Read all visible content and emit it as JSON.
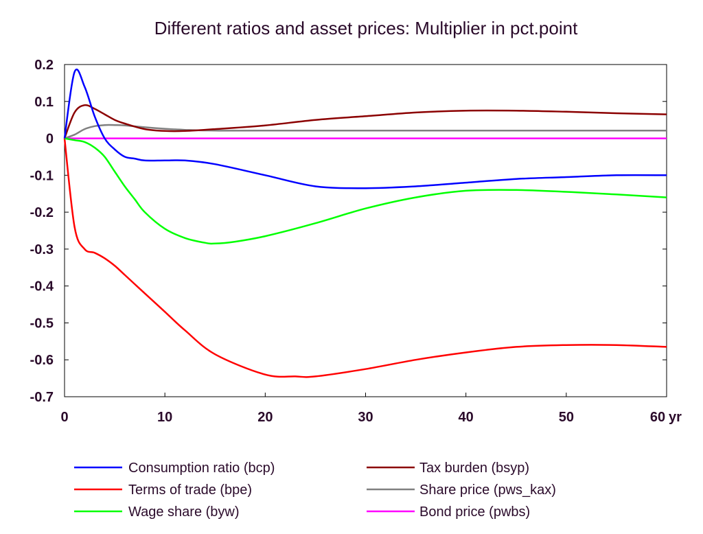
{
  "chart_data": {
    "type": "line",
    "title": "Different ratios and asset prices: Multiplier in pct.point",
    "xlabel": "",
    "ylabel": "",
    "x_unit_label": "yr",
    "xlim": [
      0,
      60
    ],
    "ylim": [
      -0.7,
      0.2
    ],
    "x_ticks": [
      0,
      10,
      20,
      30,
      40,
      50,
      60
    ],
    "x_tick_labels": [
      "0",
      "10",
      "20",
      "30",
      "40",
      "50",
      "60"
    ],
    "y_ticks": [
      0.2,
      0.1,
      0,
      -0.1,
      -0.2,
      -0.3,
      -0.4,
      -0.5,
      -0.6,
      -0.7
    ],
    "y_tick_labels": [
      "0.2",
      "0.1",
      "0",
      "-0.1",
      "-0.2",
      "-0.3",
      "-0.4",
      "-0.5",
      "-0.6",
      "-0.7"
    ],
    "grid": false,
    "legend_placement": "bottom",
    "series": [
      {
        "name": "Consumption ratio (bcp)",
        "color": "#0000ff",
        "x": [
          0,
          1,
          2,
          3,
          4,
          5,
          6,
          7,
          8,
          10,
          12,
          15,
          20,
          25,
          30,
          35,
          40,
          45,
          50,
          55,
          60
        ],
        "y": [
          0,
          0.18,
          0.14,
          0.06,
          0.0,
          -0.03,
          -0.05,
          -0.055,
          -0.06,
          -0.06,
          -0.06,
          -0.07,
          -0.1,
          -0.13,
          -0.135,
          -0.13,
          -0.12,
          -0.11,
          -0.105,
          -0.1,
          -0.1
        ]
      },
      {
        "name": "Terms of trade (bpe)",
        "color": "#ff0000",
        "x": [
          0,
          1,
          2,
          3,
          4,
          5,
          6,
          7,
          8,
          10,
          12,
          15,
          20,
          23,
          25,
          30,
          35,
          40,
          45,
          50,
          55,
          60
        ],
        "y": [
          0,
          -0.24,
          -0.3,
          -0.31,
          -0.325,
          -0.345,
          -0.37,
          -0.395,
          -0.42,
          -0.47,
          -0.52,
          -0.585,
          -0.64,
          -0.645,
          -0.645,
          -0.625,
          -0.6,
          -0.58,
          -0.565,
          -0.56,
          -0.56,
          -0.565
        ]
      },
      {
        "name": "Wage share (byw)",
        "color": "#00ff00",
        "x": [
          0,
          1,
          2,
          3,
          4,
          5,
          6,
          7,
          8,
          10,
          12,
          14,
          15,
          17,
          20,
          25,
          30,
          35,
          40,
          45,
          50,
          55,
          60
        ],
        "y": [
          0,
          -0.005,
          -0.01,
          -0.025,
          -0.05,
          -0.09,
          -0.13,
          -0.165,
          -0.2,
          -0.245,
          -0.27,
          -0.283,
          -0.285,
          -0.28,
          -0.265,
          -0.23,
          -0.19,
          -0.16,
          -0.142,
          -0.14,
          -0.145,
          -0.152,
          -0.16
        ]
      },
      {
        "name": "Tax burden (bsyp)",
        "color": "#8b0000",
        "x": [
          0,
          1,
          2,
          3,
          4,
          5,
          6,
          8,
          10,
          12,
          15,
          20,
          25,
          30,
          35,
          40,
          45,
          50,
          55,
          60
        ],
        "y": [
          0,
          0.07,
          0.09,
          0.08,
          0.065,
          0.05,
          0.04,
          0.025,
          0.02,
          0.02,
          0.025,
          0.035,
          0.05,
          0.06,
          0.07,
          0.075,
          0.075,
          0.072,
          0.068,
          0.065
        ]
      },
      {
        "name": "Share price (pws_kax)",
        "color": "#808080",
        "x": [
          0,
          1,
          2,
          3,
          4,
          5,
          6,
          8,
          10,
          12,
          15,
          20,
          30,
          40,
          50,
          60
        ],
        "y": [
          0,
          0.01,
          0.025,
          0.033,
          0.036,
          0.036,
          0.035,
          0.03,
          0.026,
          0.023,
          0.021,
          0.021,
          0.021,
          0.021,
          0.021,
          0.021
        ]
      },
      {
        "name": "Bond price (pwbs)",
        "color": "#ff00ff",
        "x": [
          0,
          60
        ],
        "y": [
          0,
          0
        ]
      }
    ]
  }
}
